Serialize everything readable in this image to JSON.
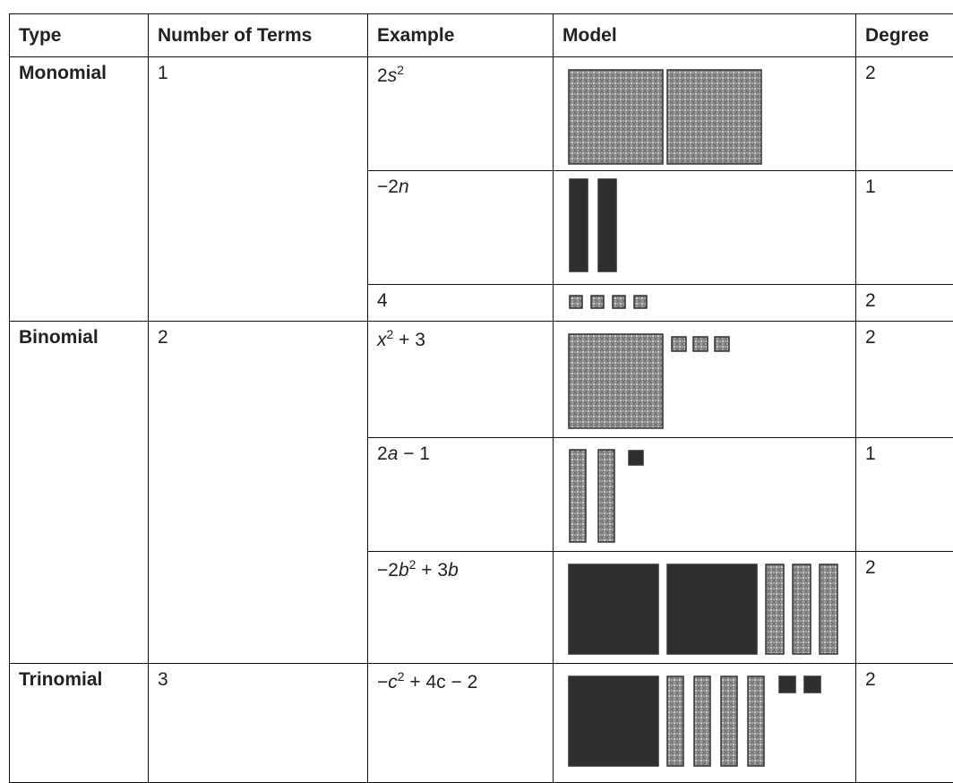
{
  "table": {
    "header": [
      "Type",
      "Number of Terms",
      "Example",
      "Model",
      "Degree"
    ],
    "groups": [
      {
        "type": "Monomial",
        "terms": 1,
        "rows": [
          {
            "example": [
              "2",
              "s",
              "2"
            ],
            "degree": 2
          },
          {
            "example": [
              "−2",
              "n"
            ],
            "degree": 1
          },
          {
            "example": [
              "4"
            ],
            "degree": 2
          }
        ]
      },
      {
        "type": "Binomial",
        "terms": 2,
        "rows": [
          {
            "example": [
              "x",
              "2",
              " + 3"
            ],
            "degree": 2
          },
          {
            "example": [
              "2",
              "a",
              " − 1"
            ],
            "degree": 1
          },
          {
            "example": [
              "−2",
              "b",
              "2",
              " + 3",
              "b"
            ],
            "degree": 2
          }
        ]
      },
      {
        "type": "Trinomial",
        "terms": 3,
        "rows": [
          {
            "example": [
              "−",
              "c",
              "2",
              " + 4c − 2"
            ],
            "degree": 2
          }
        ]
      }
    ]
  }
}
